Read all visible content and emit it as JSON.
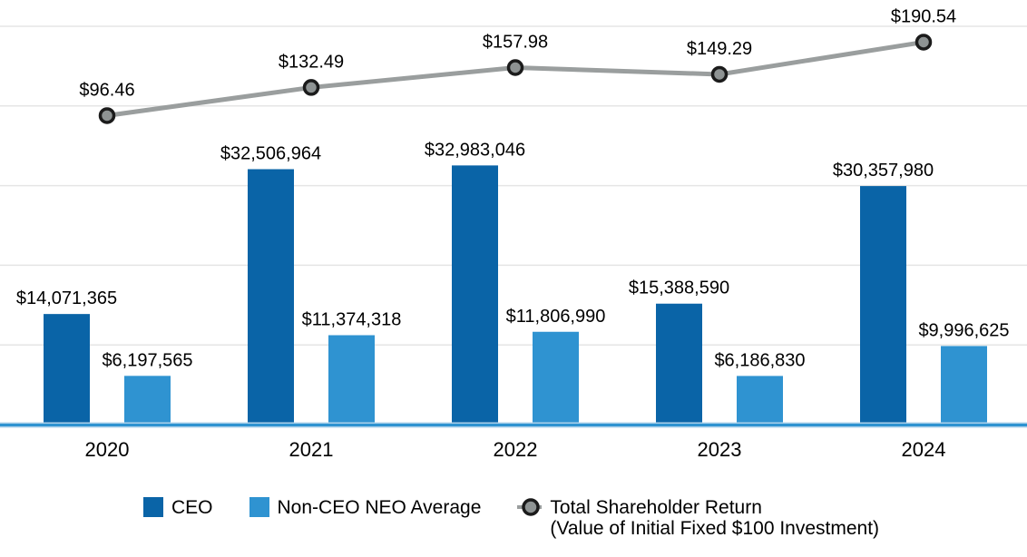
{
  "chart_data": {
    "type": "combo-bar-line",
    "title": "",
    "categories": [
      "2020",
      "2021",
      "2022",
      "2023",
      "2024"
    ],
    "series": [
      {
        "name": "CEO",
        "type": "bar",
        "color": "#0a64a7",
        "values": [
          14071365,
          32506964,
          32983046,
          15388590,
          30357980
        ],
        "labels": [
          "$14,071,365",
          "$32,506,964",
          "$32,983,046",
          "$15,388,590",
          "$30,357,980"
        ]
      },
      {
        "name": "Non-CEO NEO Average",
        "type": "bar",
        "color": "#2f93d1",
        "values": [
          6197565,
          11374318,
          11806990,
          6186830,
          9996625
        ],
        "labels": [
          "$6,197,565",
          "$11,374,318",
          "$11,806,990",
          "$6,186,830",
          "$9,996,625"
        ]
      },
      {
        "name": "Total Shareholder Return (Value of Initial Fixed $100 Investment)",
        "type": "line",
        "color": "#9a9e9e",
        "marker_fill": "#8e9393",
        "marker_stroke": "#1b1b1b",
        "values": [
          96.46,
          132.49,
          157.98,
          149.29,
          190.54
        ],
        "labels": [
          "$96.46",
          "$132.49",
          "$157.98",
          "$149.29",
          "$190.54"
        ]
      }
    ],
    "left_axis": {
      "min": 0,
      "grid_step_value": 10000000,
      "gridline_count": 5
    },
    "grid": true,
    "grid_color": "#e5e5e5",
    "axis_line_color": "#2e93d1",
    "axis_line_halo_color": "#abd0ea",
    "label_color": "#000000",
    "legend_position": "bottom",
    "legend": [
      {
        "swatch": "square",
        "color": "#0a64a7",
        "label": "CEO"
      },
      {
        "swatch": "square",
        "color": "#2f93d1",
        "label": "Non-CEO NEO Average"
      },
      {
        "swatch": "line-marker",
        "line_color": "#9a9e9e",
        "marker_fill": "#8e9393",
        "marker_stroke": "#1b1b1b",
        "label_line1": "Total Shareholder Return",
        "label_line2": "(Value of Initial Fixed $100 Investment)"
      }
    ]
  }
}
